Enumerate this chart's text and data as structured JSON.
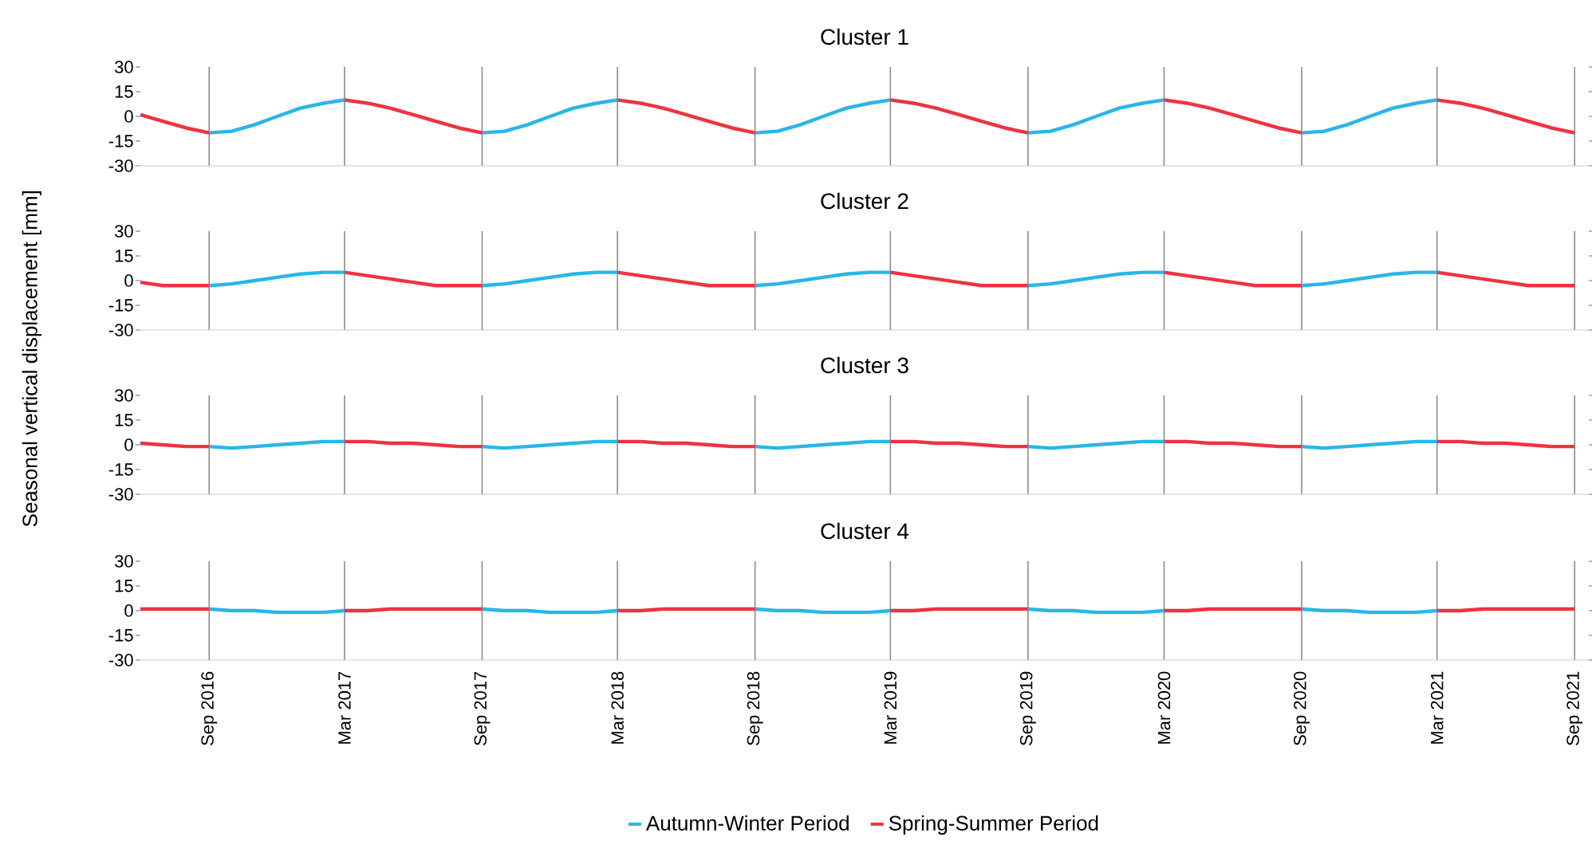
{
  "chart_data": [
    {
      "type": "line",
      "title": "Cluster 1",
      "ylabel": "Seasonal vertical displacement [mm]",
      "x": [
        "2016-06",
        "2016-07",
        "2016-08",
        "2016-09",
        "2016-10",
        "2016-11",
        "2016-12",
        "2017-01",
        "2017-02",
        "2017-03",
        "2017-04",
        "2017-05",
        "2017-06",
        "2017-07",
        "2017-08",
        "2017-09",
        "2017-10",
        "2017-11",
        "2017-12",
        "2018-01",
        "2018-02",
        "2018-03",
        "2018-04",
        "2018-05",
        "2018-06",
        "2018-07",
        "2018-08",
        "2018-09",
        "2018-10",
        "2018-11",
        "2018-12",
        "2019-01",
        "2019-02",
        "2019-03",
        "2019-04",
        "2019-05",
        "2019-06",
        "2019-07",
        "2019-08",
        "2019-09",
        "2019-10",
        "2019-11",
        "2019-12",
        "2020-01",
        "2020-02",
        "2020-03",
        "2020-04",
        "2020-05",
        "2020-06",
        "2020-07",
        "2020-08",
        "2020-09",
        "2020-10",
        "2020-11",
        "2020-12",
        "2021-01",
        "2021-02",
        "2021-03",
        "2021-04",
        "2021-05",
        "2021-06",
        "2021-07",
        "2021-08",
        "2021-09"
      ],
      "xlim": [
        "2016-06-01",
        "2021-09-20"
      ],
      "xticks": [
        {
          "value": "2016-09",
          "label": null
        },
        {
          "value": "2017-03",
          "label": null
        },
        {
          "value": "2017-09",
          "label": null
        },
        {
          "value": "2018-03",
          "label": null
        },
        {
          "value": "2018-09",
          "label": null
        },
        {
          "value": "2019-03",
          "label": null
        },
        {
          "value": "2019-09",
          "label": null
        },
        {
          "value": "2020-03",
          "label": null
        },
        {
          "value": "2020-09",
          "label": null
        },
        {
          "value": "2021-03",
          "label": null
        },
        {
          "value": "2021-09",
          "label": null
        }
      ],
      "ylim": [
        -30,
        30
      ],
      "yticks": [
        30,
        15,
        0,
        -15,
        -30
      ],
      "grid": "x",
      "tick_labels": "y",
      "series": [
        {
          "color": "#29b6e8",
          "values": [
            null,
            null,
            null,
            -10,
            -9,
            -5,
            0,
            5,
            8,
            10,
            null,
            null,
            null,
            null,
            null,
            -10,
            -9,
            -5,
            0,
            5,
            8,
            10,
            null,
            null,
            null,
            null,
            null,
            -10,
            -9,
            -5,
            0,
            5,
            8,
            10,
            null,
            null,
            null,
            null,
            null,
            -10,
            -9,
            -5,
            0,
            5,
            8,
            10,
            null,
            null,
            null,
            null,
            null,
            -10,
            -9,
            -5,
            0,
            5,
            8,
            10,
            null,
            null,
            null,
            null,
            null,
            null
          ]
        },
        {
          "color": "#ee3340",
          "values": [
            1,
            -3,
            -7,
            -10,
            null,
            null,
            null,
            null,
            null,
            10,
            8,
            5,
            1,
            -3,
            -7,
            -10,
            null,
            null,
            null,
            null,
            null,
            10,
            8,
            5,
            1,
            -3,
            -7,
            -10,
            null,
            null,
            null,
            null,
            null,
            10,
            8,
            5,
            1,
            -3,
            -7,
            -10,
            null,
            null,
            null,
            null,
            null,
            10,
            8,
            5,
            1,
            -3,
            -7,
            -10,
            null,
            null,
            null,
            null,
            null,
            10,
            8,
            5,
            1,
            -3,
            -7,
            -10
          ]
        }
      ]
    },
    {
      "type": "line",
      "title": "Cluster 2",
      "x": [
        "2016-06",
        "2016-07",
        "2016-08",
        "2016-09",
        "2016-10",
        "2016-11",
        "2016-12",
        "2017-01",
        "2017-02",
        "2017-03",
        "2017-04",
        "2017-05",
        "2017-06",
        "2017-07",
        "2017-08",
        "2017-09",
        "2017-10",
        "2017-11",
        "2017-12",
        "2018-01",
        "2018-02",
        "2018-03",
        "2018-04",
        "2018-05",
        "2018-06",
        "2018-07",
        "2018-08",
        "2018-09",
        "2018-10",
        "2018-11",
        "2018-12",
        "2019-01",
        "2019-02",
        "2019-03",
        "2019-04",
        "2019-05",
        "2019-06",
        "2019-07",
        "2019-08",
        "2019-09",
        "2019-10",
        "2019-11",
        "2019-12",
        "2020-01",
        "2020-02",
        "2020-03",
        "2020-04",
        "2020-05",
        "2020-06",
        "2020-07",
        "2020-08",
        "2020-09",
        "2020-10",
        "2020-11",
        "2020-12",
        "2021-01",
        "2021-02",
        "2021-03",
        "2021-04",
        "2021-05",
        "2021-06",
        "2021-07",
        "2021-08",
        "2021-09"
      ],
      "xlim": [
        "2016-06-01",
        "2021-09-20"
      ],
      "xticks": [
        {
          "value": "2016-09",
          "label": null
        },
        {
          "value": "2017-03",
          "label": null
        },
        {
          "value": "2017-09",
          "label": null
        },
        {
          "value": "2018-03",
          "label": null
        },
        {
          "value": "2018-09",
          "label": null
        },
        {
          "value": "2019-03",
          "label": null
        },
        {
          "value": "2019-09",
          "label": null
        },
        {
          "value": "2020-03",
          "label": null
        },
        {
          "value": "2020-09",
          "label": null
        },
        {
          "value": "2021-03",
          "label": null
        },
        {
          "value": "2021-09",
          "label": null
        }
      ],
      "ylim": [
        -30,
        30
      ],
      "yticks": [
        30,
        15,
        0,
        -15,
        -30
      ],
      "grid": "x",
      "tick_labels": "y",
      "series": [
        {
          "color": "#29b6e8",
          "values": [
            null,
            null,
            null,
            -3,
            -2,
            0,
            2,
            4,
            5,
            5,
            null,
            null,
            null,
            null,
            null,
            -3,
            -2,
            0,
            2,
            4,
            5,
            5,
            null,
            null,
            null,
            null,
            null,
            -3,
            -2,
            0,
            2,
            4,
            5,
            5,
            null,
            null,
            null,
            null,
            null,
            -3,
            -2,
            0,
            2,
            4,
            5,
            5,
            null,
            null,
            null,
            null,
            null,
            -3,
            -2,
            0,
            2,
            4,
            5,
            5,
            null,
            null,
            null,
            null,
            null,
            null
          ]
        },
        {
          "color": "#ee3340",
          "values": [
            -1,
            -3,
            -3,
            -3,
            null,
            null,
            null,
            null,
            null,
            5,
            3,
            1,
            -1,
            -3,
            -3,
            -3,
            null,
            null,
            null,
            null,
            null,
            5,
            3,
            1,
            -1,
            -3,
            -3,
            -3,
            null,
            null,
            null,
            null,
            null,
            5,
            3,
            1,
            -1,
            -3,
            -3,
            -3,
            null,
            null,
            null,
            null,
            null,
            5,
            3,
            1,
            -1,
            -3,
            -3,
            -3,
            null,
            null,
            null,
            null,
            null,
            5,
            3,
            1,
            -1,
            -3,
            -3,
            -3
          ]
        }
      ]
    },
    {
      "type": "line",
      "title": "Cluster 3",
      "x": [
        "2016-06",
        "2016-07",
        "2016-08",
        "2016-09",
        "2016-10",
        "2016-11",
        "2016-12",
        "2017-01",
        "2017-02",
        "2017-03",
        "2017-04",
        "2017-05",
        "2017-06",
        "2017-07",
        "2017-08",
        "2017-09",
        "2017-10",
        "2017-11",
        "2017-12",
        "2018-01",
        "2018-02",
        "2018-03",
        "2018-04",
        "2018-05",
        "2018-06",
        "2018-07",
        "2018-08",
        "2018-09",
        "2018-10",
        "2018-11",
        "2018-12",
        "2019-01",
        "2019-02",
        "2019-03",
        "2019-04",
        "2019-05",
        "2019-06",
        "2019-07",
        "2019-08",
        "2019-09",
        "2019-10",
        "2019-11",
        "2019-12",
        "2020-01",
        "2020-02",
        "2020-03",
        "2020-04",
        "2020-05",
        "2020-06",
        "2020-07",
        "2020-08",
        "2020-09",
        "2020-10",
        "2020-11",
        "2020-12",
        "2021-01",
        "2021-02",
        "2021-03",
        "2021-04",
        "2021-05",
        "2021-06",
        "2021-07",
        "2021-08",
        "2021-09"
      ],
      "xlim": [
        "2016-06-01",
        "2021-09-20"
      ],
      "xticks": [
        {
          "value": "2016-09",
          "label": null
        },
        {
          "value": "2017-03",
          "label": null
        },
        {
          "value": "2017-09",
          "label": null
        },
        {
          "value": "2018-03",
          "label": null
        },
        {
          "value": "2018-09",
          "label": null
        },
        {
          "value": "2019-03",
          "label": null
        },
        {
          "value": "2019-09",
          "label": null
        },
        {
          "value": "2020-03",
          "label": null
        },
        {
          "value": "2020-09",
          "label": null
        },
        {
          "value": "2021-03",
          "label": null
        },
        {
          "value": "2021-09",
          "label": null
        }
      ],
      "ylim": [
        -30,
        30
      ],
      "yticks": [
        30,
        15,
        0,
        -15,
        -30
      ],
      "grid": "x",
      "tick_labels": "y",
      "series": [
        {
          "color": "#29b6e8",
          "values": [
            null,
            null,
            null,
            -1,
            -2,
            -1,
            0,
            1,
            2,
            2,
            null,
            null,
            null,
            null,
            null,
            -1,
            -2,
            -1,
            0,
            1,
            2,
            2,
            null,
            null,
            null,
            null,
            null,
            -1,
            -2,
            -1,
            0,
            1,
            2,
            2,
            null,
            null,
            null,
            null,
            null,
            -1,
            -2,
            -1,
            0,
            1,
            2,
            2,
            null,
            null,
            null,
            null,
            null,
            -1,
            -2,
            -1,
            0,
            1,
            2,
            2,
            null,
            null,
            null,
            null,
            null,
            null
          ]
        },
        {
          "color": "#ee3340",
          "values": [
            1,
            0,
            -1,
            -1,
            null,
            null,
            null,
            null,
            null,
            2,
            2,
            1,
            1,
            0,
            -1,
            -1,
            null,
            null,
            null,
            null,
            null,
            2,
            2,
            1,
            1,
            0,
            -1,
            -1,
            null,
            null,
            null,
            null,
            null,
            2,
            2,
            1,
            1,
            0,
            -1,
            -1,
            null,
            null,
            null,
            null,
            null,
            2,
            2,
            1,
            1,
            0,
            -1,
            -1,
            null,
            null,
            null,
            null,
            null,
            2,
            2,
            1,
            1,
            0,
            -1,
            -1
          ]
        }
      ]
    },
    {
      "type": "line",
      "title": "Cluster 4",
      "x": [
        "2016-06",
        "2016-07",
        "2016-08",
        "2016-09",
        "2016-10",
        "2016-11",
        "2016-12",
        "2017-01",
        "2017-02",
        "2017-03",
        "2017-04",
        "2017-05",
        "2017-06",
        "2017-07",
        "2017-08",
        "2017-09",
        "2017-10",
        "2017-11",
        "2017-12",
        "2018-01",
        "2018-02",
        "2018-03",
        "2018-04",
        "2018-05",
        "2018-06",
        "2018-07",
        "2018-08",
        "2018-09",
        "2018-10",
        "2018-11",
        "2018-12",
        "2019-01",
        "2019-02",
        "2019-03",
        "2019-04",
        "2019-05",
        "2019-06",
        "2019-07",
        "2019-08",
        "2019-09",
        "2019-10",
        "2019-11",
        "2019-12",
        "2020-01",
        "2020-02",
        "2020-03",
        "2020-04",
        "2020-05",
        "2020-06",
        "2020-07",
        "2020-08",
        "2020-09",
        "2020-10",
        "2020-11",
        "2020-12",
        "2021-01",
        "2021-02",
        "2021-03",
        "2021-04",
        "2021-05",
        "2021-06",
        "2021-07",
        "2021-08",
        "2021-09"
      ],
      "xlim": [
        "2016-06-01",
        "2021-09-20"
      ],
      "xticks": [
        {
          "value": "2016-09",
          "label": "Sep 2016"
        },
        {
          "value": "2017-03",
          "label": "Mar 2017"
        },
        {
          "value": "2017-09",
          "label": "Sep 2017"
        },
        {
          "value": "2018-03",
          "label": "Mar 2018"
        },
        {
          "value": "2018-09",
          "label": "Sep 2018"
        },
        {
          "value": "2019-03",
          "label": "Mar 2019"
        },
        {
          "value": "2019-09",
          "label": "Sep 2019"
        },
        {
          "value": "2020-03",
          "label": "Mar 2020"
        },
        {
          "value": "2020-09",
          "label": "Sep 2020"
        },
        {
          "value": "2021-03",
          "label": "Mar 2021"
        },
        {
          "value": "2021-09",
          "label": "Sep 2021"
        }
      ],
      "ylim": [
        -30,
        30
      ],
      "yticks": [
        30,
        15,
        0,
        -15,
        -30
      ],
      "grid": "x",
      "legend": "bottom",
      "series": [
        {
          "name": "Autumn-Winter Period",
          "color": "#29b6e8",
          "values": [
            null,
            null,
            null,
            1,
            0,
            0,
            -1,
            -1,
            -1,
            0,
            null,
            null,
            null,
            null,
            null,
            1,
            0,
            0,
            -1,
            -1,
            -1,
            0,
            null,
            null,
            null,
            null,
            null,
            1,
            0,
            0,
            -1,
            -1,
            -1,
            0,
            null,
            null,
            null,
            null,
            null,
            1,
            0,
            0,
            -1,
            -1,
            -1,
            0,
            null,
            null,
            null,
            null,
            null,
            1,
            0,
            0,
            -1,
            -1,
            -1,
            0,
            null,
            null,
            null,
            null,
            null,
            null
          ]
        },
        {
          "name": "Spring-Summer Period",
          "color": "#ee3340",
          "values": [
            1,
            1,
            1,
            1,
            null,
            null,
            null,
            null,
            null,
            0,
            0,
            1,
            1,
            1,
            1,
            1,
            null,
            null,
            null,
            null,
            null,
            0,
            0,
            1,
            1,
            1,
            1,
            1,
            null,
            null,
            null,
            null,
            null,
            0,
            0,
            1,
            1,
            1,
            1,
            1,
            null,
            null,
            null,
            null,
            null,
            0,
            0,
            1,
            1,
            1,
            1,
            1,
            null,
            null,
            null,
            null,
            null,
            0,
            0,
            1,
            1,
            1,
            1,
            1
          ]
        }
      ]
    }
  ]
}
